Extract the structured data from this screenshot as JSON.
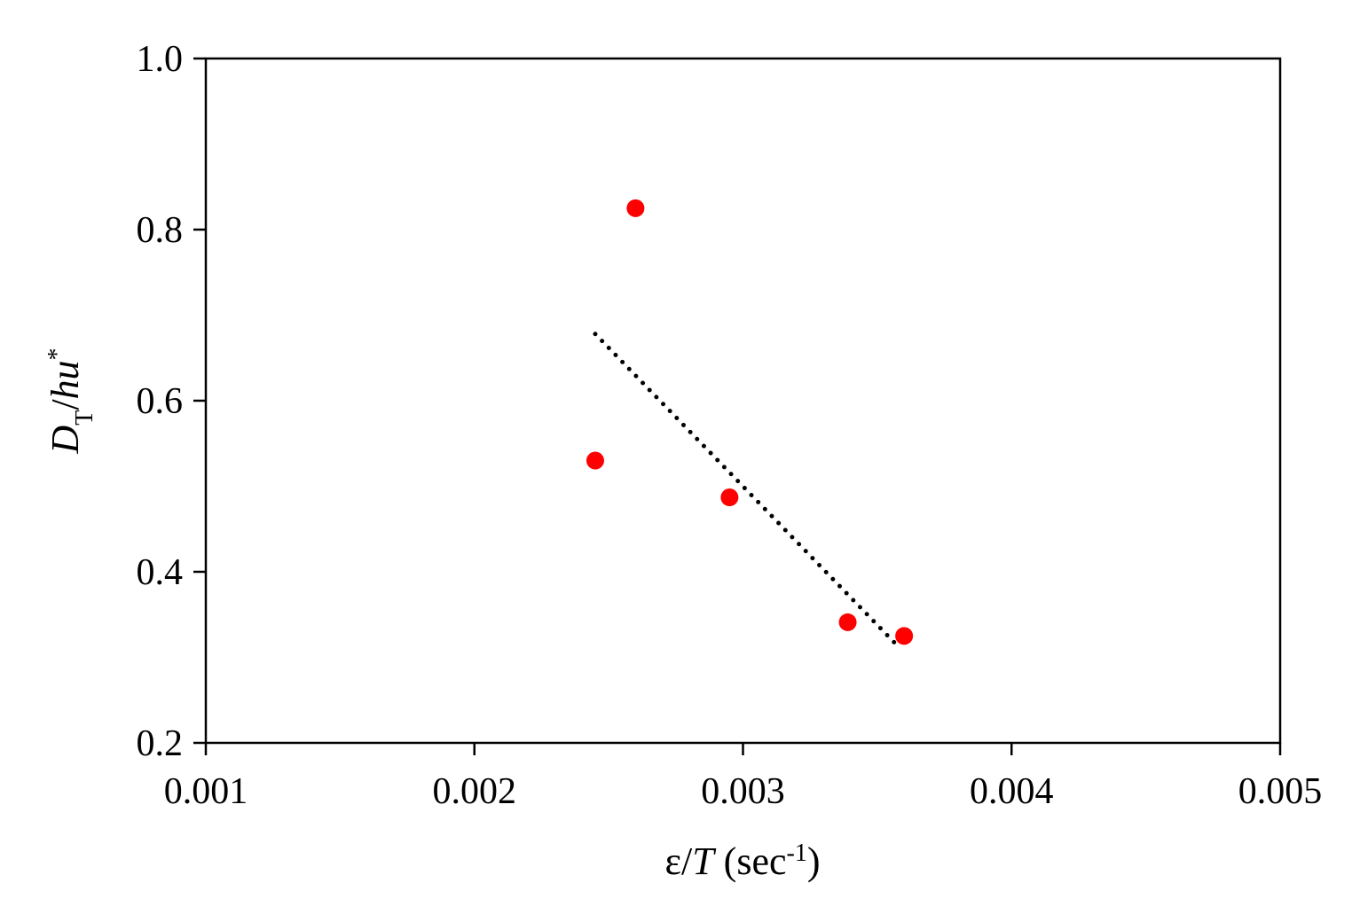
{
  "chart_data": {
    "type": "scatter",
    "title": "",
    "xlabel": {
      "parts": [
        {
          "text": "ε/",
          "style": "normal"
        },
        {
          "text": "T",
          "style": "italic"
        },
        {
          "text": " (sec",
          "style": "normal"
        },
        {
          "text": "-1",
          "style": "sup"
        },
        {
          "text": ")",
          "style": "normal"
        }
      ]
    },
    "ylabel": {
      "parts": [
        {
          "text": "D",
          "style": "italic"
        },
        {
          "text": "T",
          "style": "sub"
        },
        {
          "text": "/",
          "style": "normal"
        },
        {
          "text": "hu",
          "style": "italic"
        },
        {
          "text": "*",
          "style": "sup"
        }
      ]
    },
    "xlim": [
      0.001,
      0.005
    ],
    "ylim": [
      0.2,
      1.0
    ],
    "x_ticks": [
      0.001,
      0.002,
      0.003,
      0.004,
      0.005
    ],
    "x_tick_labels": [
      "0.001",
      "0.002",
      "0.003",
      "0.004",
      "0.005"
    ],
    "y_ticks": [
      0.2,
      0.4,
      0.6,
      0.8,
      1.0
    ],
    "y_tick_labels": [
      "0.2",
      "0.4",
      "0.6",
      "0.8",
      "1.0"
    ],
    "grid": false,
    "series": [
      {
        "type": "scatter",
        "color": "#ff0000",
        "points": [
          {
            "x": 0.00245,
            "y": 0.53
          },
          {
            "x": 0.0026,
            "y": 0.825
          },
          {
            "x": 0.00295,
            "y": 0.487
          },
          {
            "x": 0.00339,
            "y": 0.341
          },
          {
            "x": 0.0036,
            "y": 0.325
          }
        ]
      },
      {
        "type": "trendline",
        "line_style": "dotted",
        "color": "#000000",
        "points": [
          {
            "x": 0.00245,
            "y": 0.678
          },
          {
            "x": 0.00358,
            "y": 0.312
          }
        ]
      }
    ]
  }
}
